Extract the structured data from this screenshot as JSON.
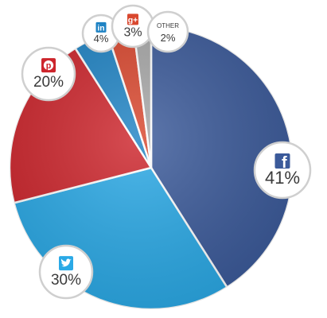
{
  "chart_data": {
    "type": "pie",
    "slices": [
      {
        "label": "facebook",
        "value": 41,
        "display": "41%",
        "color": "#3b5a9a",
        "icon": "facebook-icon"
      },
      {
        "label": "twitter",
        "value": 30,
        "display": "30%",
        "color": "#2aa9e6",
        "icon": "twitter-icon"
      },
      {
        "label": "pinterest",
        "value": 20,
        "display": "20%",
        "color": "#cd252c",
        "icon": "pinterest-icon"
      },
      {
        "label": "linkedin",
        "value": 4,
        "display": "4%",
        "color": "#1f83c4",
        "icon": "linkedin-icon"
      },
      {
        "label": "google-plus",
        "value": 3,
        "display": "3%",
        "color": "#d9472e",
        "icon": "google-plus-icon"
      },
      {
        "label": "other",
        "value": 2,
        "display": "2%",
        "color": "#a7a7a7",
        "name": "OTHER"
      }
    ]
  }
}
